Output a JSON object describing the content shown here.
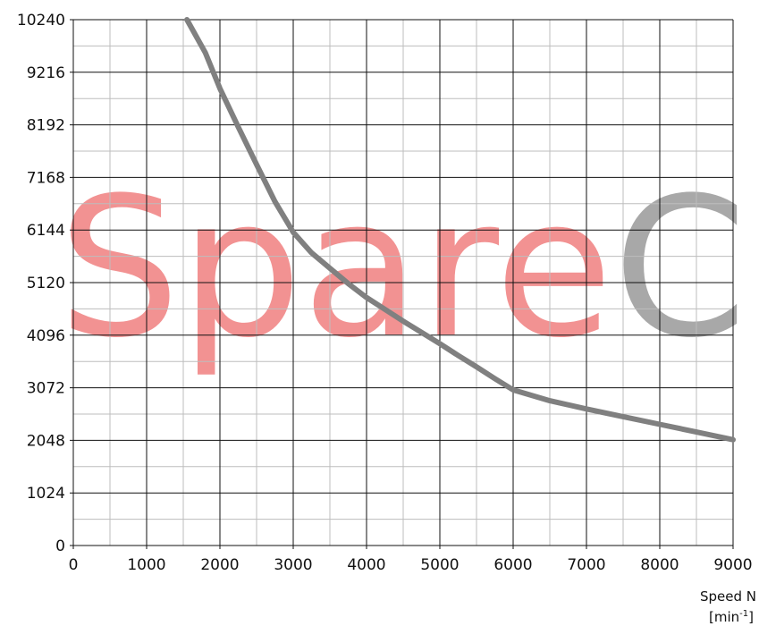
{
  "chart_data": {
    "type": "line",
    "title": "",
    "xlabel": "Speed N",
    "xlabel_unit_base": "[min",
    "xlabel_unit_sup": "-1",
    "xlabel_unit_close": "]",
    "ylabel": "",
    "xlim": [
      0,
      9000
    ],
    "ylim": [
      0,
      10240
    ],
    "x_ticks": [
      0,
      1000,
      2000,
      3000,
      4000,
      5000,
      6000,
      7000,
      8000,
      9000
    ],
    "y_ticks": [
      0,
      1024,
      2048,
      3072,
      4096,
      5120,
      6144,
      7168,
      8192,
      9216,
      10240
    ],
    "x_tick_labels": [
      "0",
      "1000",
      "2000",
      "3000",
      "4000",
      "5000",
      "6000",
      "7000",
      "8000",
      "9000"
    ],
    "y_tick_labels": [
      "0",
      "1024",
      "2048",
      "3072",
      "4096",
      "5120",
      "6144",
      "7168",
      "8192",
      "9216",
      "10240"
    ],
    "grid": true,
    "minor_grid": {
      "x_step": 500,
      "y_step": 512
    },
    "series": [
      {
        "color": "#808080",
        "x": [
          1550,
          1800,
          2000,
          2250,
          2500,
          2750,
          3000,
          3250,
          3500,
          3750,
          4000,
          4250,
          4500,
          4750,
          5000,
          5250,
          5500,
          5750,
          6000,
          6500,
          7000,
          7500,
          8000,
          8500,
          9000
        ],
        "y": [
          10240,
          9600,
          8900,
          8150,
          7420,
          6700,
          6100,
          5700,
          5400,
          5100,
          4830,
          4600,
          4370,
          4150,
          3930,
          3700,
          3480,
          3250,
          3030,
          2820,
          2660,
          2510,
          2360,
          2210,
          2060
        ]
      }
    ]
  },
  "watermark": {
    "part1": "Spare",
    "part1_color": "#f08080",
    "part2": "Cr",
    "part2_color": "#9a9a9a"
  },
  "colors": {
    "grid_major": "#111111",
    "grid_minor": "#bdbdbd"
  }
}
